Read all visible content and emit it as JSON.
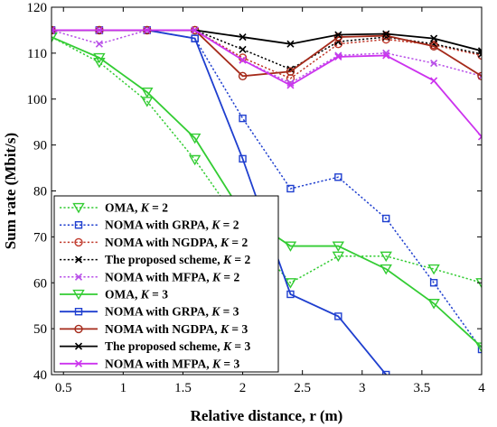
{
  "chart_data": {
    "type": "line",
    "xlabel": "Relative distance, r (m)",
    "ylabel": "Sum rate (Mbit/s)",
    "xlim": [
      0.4,
      4
    ],
    "ylim": [
      40,
      120
    ],
    "xticks": [
      0.5,
      1,
      1.5,
      2,
      2.5,
      3,
      3.5,
      4
    ],
    "yticks": [
      40,
      50,
      60,
      70,
      80,
      90,
      100,
      110,
      120
    ],
    "xtick_labels": [
      "0.5",
      "1",
      "1.5",
      "2",
      "2.5",
      "3",
      "3.5",
      "4"
    ],
    "ytick_labels": [
      "40",
      "50",
      "60",
      "70",
      "80",
      "90",
      "100",
      "110",
      "120"
    ],
    "grid": false,
    "legend_position": "left",
    "x": [
      0.4,
      0.8,
      1.2,
      1.6,
      2.0,
      2.4,
      2.8,
      3.2,
      3.6,
      4.0
    ],
    "series": [
      {
        "name": "OMA, K = 2",
        "prefix": "OMA, ",
        "k": "2",
        "color": "#33cc33",
        "dash": "dotted",
        "marker": "triangle-down",
        "values": [
          113.5,
          108.0,
          99.5,
          86.8,
          72.0,
          60.0,
          65.8,
          65.8,
          63.0,
          60.0
        ]
      },
      {
        "name": "NOMA with GRPA, K = 2",
        "prefix": "NOMA with GRPA, ",
        "k": "2",
        "color": "#1f3fcf",
        "dash": "dotted",
        "marker": "square",
        "values": [
          115.0,
          115.0,
          115.0,
          113.2,
          95.8,
          80.5,
          83.0,
          74.0,
          60.0,
          45.5
        ]
      },
      {
        "name": "NOMA with NGDPA, K = 2",
        "prefix": "NOMA with NGDPA, ",
        "k": "2",
        "color": "#c0392b",
        "dash": "dotted",
        "marker": "circle",
        "values": [
          115.0,
          115.0,
          115.0,
          115.0,
          109.0,
          104.5,
          112.0,
          113.0,
          111.8,
          109.5
        ]
      },
      {
        "name": "The proposed scheme, K = 2",
        "prefix": "The proposed scheme, ",
        "k": "2",
        "color": "#000000",
        "dash": "dotted",
        "marker": "x",
        "values": [
          115.0,
          115.0,
          115.0,
          115.0,
          110.8,
          106.5,
          112.5,
          113.5,
          112.0,
          109.8
        ]
      },
      {
        "name": "NOMA with MFPA, K = 2",
        "prefix": "NOMA with MFPA, ",
        "k": "2",
        "color": "#b84fe8",
        "dash": "dotted",
        "marker": "x",
        "values": [
          115.0,
          112.0,
          115.0,
          115.0,
          108.5,
          103.5,
          109.5,
          110.0,
          107.8,
          105.0
        ]
      },
      {
        "name": "OMA, K = 3",
        "prefix": "OMA, ",
        "k": "3",
        "color": "#33cc33",
        "dash": "solid",
        "marker": "triangle-down",
        "values": [
          113.5,
          109.0,
          101.5,
          91.5,
          75.0,
          68.0,
          68.0,
          63.0,
          55.5,
          46.0
        ]
      },
      {
        "name": "NOMA with GRPA, K = 3",
        "prefix": "NOMA with GRPA, ",
        "k": "3",
        "color": "#1f3fcf",
        "dash": "solid",
        "marker": "square",
        "values": [
          115.0,
          115.0,
          115.0,
          113.2,
          87.0,
          57.5,
          52.7,
          40.0,
          null,
          null
        ]
      },
      {
        "name": "NOMA with NGDPA, K = 3",
        "prefix": "NOMA with NGDPA, ",
        "k": "3",
        "color": "#a52a1a",
        "dash": "solid",
        "marker": "circle",
        "values": [
          115.0,
          115.0,
          115.0,
          115.0,
          105.0,
          106.0,
          113.5,
          113.8,
          111.5,
          105.0
        ]
      },
      {
        "name": "The proposed scheme, K = 3",
        "prefix": "The proposed scheme, ",
        "k": "3",
        "color": "#000000",
        "dash": "solid",
        "marker": "x",
        "values": [
          115.0,
          115.0,
          115.0,
          115.0,
          113.5,
          112.0,
          114.0,
          114.2,
          113.2,
          110.5
        ]
      },
      {
        "name": "NOMA with MFPA, K = 3",
        "prefix": "NOMA with MFPA, ",
        "k": "3",
        "color": "#cc33ee",
        "dash": "solid",
        "marker": "x",
        "values": [
          115.0,
          115.0,
          115.0,
          115.0,
          108.5,
          103.0,
          109.2,
          109.5,
          104.0,
          91.8
        ]
      }
    ]
  }
}
